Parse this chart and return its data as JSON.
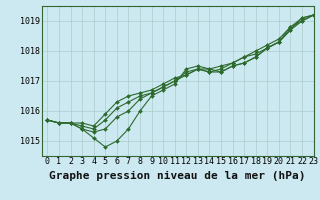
{
  "background_color": "#cce8f0",
  "grid_color": "#aacccc",
  "line_color": "#2d6a2d",
  "marker_color": "#2d6a2d",
  "title": "Graphe pression niveau de la mer (hPa)",
  "xlim": [
    -0.5,
    23
  ],
  "ylim": [
    1014.5,
    1019.5
  ],
  "yticks": [
    1015,
    1016,
    1017,
    1018,
    1019
  ],
  "xticks": [
    0,
    1,
    2,
    3,
    4,
    5,
    6,
    7,
    8,
    9,
    10,
    11,
    12,
    13,
    14,
    15,
    16,
    17,
    18,
    19,
    20,
    21,
    22,
    23
  ],
  "series": [
    [
      1015.7,
      1015.6,
      1015.6,
      1015.4,
      1015.1,
      1014.8,
      1015.0,
      1015.4,
      1016.0,
      1016.5,
      1016.7,
      1016.9,
      1017.4,
      1017.5,
      1017.4,
      1017.3,
      1017.5,
      1017.6,
      1017.8,
      1018.1,
      1018.3,
      1018.7,
      1019.1,
      1019.2
    ],
    [
      1015.7,
      1015.6,
      1015.6,
      1015.4,
      1015.3,
      1015.4,
      1015.8,
      1016.0,
      1016.4,
      1016.6,
      1016.8,
      1017.0,
      1017.3,
      1017.4,
      1017.3,
      1017.3,
      1017.5,
      1017.6,
      1017.8,
      1018.1,
      1018.3,
      1018.7,
      1019.0,
      1019.2
    ],
    [
      1015.7,
      1015.6,
      1015.6,
      1015.5,
      1015.4,
      1015.7,
      1016.1,
      1016.3,
      1016.5,
      1016.6,
      1016.8,
      1017.0,
      1017.2,
      1017.4,
      1017.3,
      1017.4,
      1017.6,
      1017.8,
      1017.9,
      1018.1,
      1018.3,
      1018.8,
      1019.0,
      1019.2
    ],
    [
      1015.7,
      1015.6,
      1015.6,
      1015.6,
      1015.5,
      1015.9,
      1016.3,
      1016.5,
      1016.6,
      1016.7,
      1016.9,
      1017.1,
      1017.2,
      1017.4,
      1017.4,
      1017.5,
      1017.6,
      1017.8,
      1018.0,
      1018.2,
      1018.4,
      1018.8,
      1019.1,
      1019.2
    ]
  ],
  "title_fontsize": 8,
  "tick_fontsize": 6,
  "marker_size": 2.0,
  "line_width": 0.8
}
